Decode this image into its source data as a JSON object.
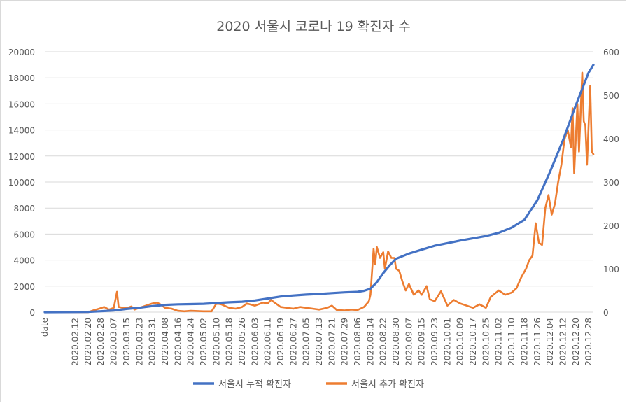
{
  "chart_data": {
    "type": "line",
    "title": "2020 서울시 코로나 19 확진자 수",
    "x_first_label": "date",
    "x_ticks": [
      "2020.02.12",
      "2020.02.20",
      "2020.02.28",
      "2020.03.07",
      "2020.03.15",
      "2020.03.23",
      "2020.03.31",
      "2020.04.08",
      "2020.04.16",
      "2020.04.24",
      "2020.05.02",
      "2020.05.10",
      "2020.05.18",
      "2020.05.26",
      "2020.06.03",
      "2020.06.11",
      "2020.06.19",
      "2020.06.27",
      "2020.07.05",
      "2020.07.13",
      "2020.07.21",
      "2020.07.29",
      "2020.08.06",
      "2020.08.14",
      "2020.08.22",
      "2020.08.30",
      "2020.09.07",
      "2020.09.15",
      "2020.09.23",
      "2020.10.01",
      "2020.10.09",
      "2020.10.17",
      "2020.10.25",
      "2020.11.02",
      "2020.11.10",
      "2020.11.18",
      "2020.11.26",
      "2020.12.04",
      "2020.12.12",
      "2020.12.20",
      "2020.12.28"
    ],
    "y_left": {
      "min": 0,
      "max": 20000,
      "ticks": [
        "0",
        "2000",
        "4000",
        "6000",
        "8000",
        "10000",
        "12000",
        "14000",
        "16000",
        "18000",
        "20000"
      ]
    },
    "y_right": {
      "min": 0,
      "max": 600,
      "ticks": [
        "0",
        "100",
        "200",
        "300",
        "400",
        "500",
        "600"
      ]
    },
    "grid": true,
    "legend_position": "bottom",
    "series": [
      {
        "name": "서울시 누적 확진자",
        "axis": "left",
        "color": "#4472C4",
        "points": [
          [
            "2020.01.24",
            0
          ],
          [
            "2020.02.12",
            10
          ],
          [
            "2020.02.20",
            20
          ],
          [
            "2020.02.28",
            70
          ],
          [
            "2020.03.07",
            130
          ],
          [
            "2020.03.15",
            250
          ],
          [
            "2020.03.23",
            340
          ],
          [
            "2020.03.31",
            470
          ],
          [
            "2020.04.08",
            560
          ],
          [
            "2020.04.16",
            600
          ],
          [
            "2020.04.24",
            620
          ],
          [
            "2020.05.02",
            640
          ],
          [
            "2020.05.10",
            700
          ],
          [
            "2020.05.18",
            760
          ],
          [
            "2020.05.26",
            800
          ],
          [
            "2020.06.03",
            900
          ],
          [
            "2020.06.11",
            1050
          ],
          [
            "2020.06.19",
            1200
          ],
          [
            "2020.06.27",
            1280
          ],
          [
            "2020.07.05",
            1350
          ],
          [
            "2020.07.13",
            1400
          ],
          [
            "2020.07.21",
            1460
          ],
          [
            "2020.07.29",
            1520
          ],
          [
            "2020.08.06",
            1560
          ],
          [
            "2020.08.10",
            1640
          ],
          [
            "2020.08.14",
            1800
          ],
          [
            "2020.08.18",
            2300
          ],
          [
            "2020.08.22",
            3000
          ],
          [
            "2020.08.26",
            3600
          ],
          [
            "2020.08.30",
            4100
          ],
          [
            "2020.09.07",
            4500
          ],
          [
            "2020.09.15",
            4800
          ],
          [
            "2020.09.23",
            5100
          ],
          [
            "2020.10.01",
            5300
          ],
          [
            "2020.10.09",
            5500
          ],
          [
            "2020.10.17",
            5680
          ],
          [
            "2020.10.25",
            5850
          ],
          [
            "2020.11.02",
            6100
          ],
          [
            "2020.11.10",
            6500
          ],
          [
            "2020.11.18",
            7100
          ],
          [
            "2020.11.26",
            8600
          ],
          [
            "2020.12.04",
            10800
          ],
          [
            "2020.12.12",
            13200
          ],
          [
            "2020.12.20",
            15900
          ],
          [
            "2020.12.28",
            18400
          ],
          [
            "2020.12.31",
            19000
          ]
        ]
      },
      {
        "name": "서울시 추가 확진자",
        "axis": "right",
        "color": "#ED7D31",
        "points": [
          [
            "2020.01.24",
            0
          ],
          [
            "2020.02.12",
            0
          ],
          [
            "2020.02.20",
            0
          ],
          [
            "2020.02.24",
            5
          ],
          [
            "2020.02.27",
            8
          ],
          [
            "2020.03.01",
            12
          ],
          [
            "2020.03.04",
            6
          ],
          [
            "2020.03.07",
            10
          ],
          [
            "2020.03.09",
            47
          ],
          [
            "2020.03.10",
            12
          ],
          [
            "2020.03.15",
            9
          ],
          [
            "2020.03.18",
            13
          ],
          [
            "2020.03.20",
            6
          ],
          [
            "2020.03.23",
            10
          ],
          [
            "2020.03.27",
            15
          ],
          [
            "2020.03.31",
            20
          ],
          [
            "2020.04.03",
            22
          ],
          [
            "2020.04.05",
            18
          ],
          [
            "2020.04.08",
            10
          ],
          [
            "2020.04.12",
            8
          ],
          [
            "2020.04.16",
            3
          ],
          [
            "2020.04.20",
            2
          ],
          [
            "2020.04.24",
            3
          ],
          [
            "2020.05.02",
            2
          ],
          [
            "2020.05.07",
            2
          ],
          [
            "2020.05.10",
            20
          ],
          [
            "2020.05.13",
            18
          ],
          [
            "2020.05.18",
            10
          ],
          [
            "2020.05.22",
            8
          ],
          [
            "2020.05.26",
            12
          ],
          [
            "2020.05.29",
            20
          ],
          [
            "2020.06.03",
            15
          ],
          [
            "2020.06.08",
            22
          ],
          [
            "2020.06.11",
            20
          ],
          [
            "2020.06.13",
            28
          ],
          [
            "2020.06.16",
            20
          ],
          [
            "2020.06.19",
            12
          ],
          [
            "2020.06.23",
            10
          ],
          [
            "2020.06.27",
            8
          ],
          [
            "2020.07.01",
            12
          ],
          [
            "2020.07.05",
            10
          ],
          [
            "2020.07.09",
            8
          ],
          [
            "2020.07.13",
            6
          ],
          [
            "2020.07.18",
            10
          ],
          [
            "2020.07.21",
            15
          ],
          [
            "2020.07.24",
            5
          ],
          [
            "2020.07.29",
            4
          ],
          [
            "2020.08.02",
            6
          ],
          [
            "2020.08.06",
            5
          ],
          [
            "2020.08.10",
            12
          ],
          [
            "2020.08.13",
            25
          ],
          [
            "2020.08.14",
            40
          ],
          [
            "2020.08.16",
            146
          ],
          [
            "2020.08.17",
            110
          ],
          [
            "2020.08.18",
            150
          ],
          [
            "2020.08.20",
            125
          ],
          [
            "2020.08.22",
            138
          ],
          [
            "2020.08.23",
            100
          ],
          [
            "2020.08.25",
            140
          ],
          [
            "2020.08.27",
            125
          ],
          [
            "2020.08.29",
            125
          ],
          [
            "2020.08.30",
            100
          ],
          [
            "2020.09.01",
            95
          ],
          [
            "2020.09.03",
            70
          ],
          [
            "2020.09.05",
            50
          ],
          [
            "2020.09.07",
            65
          ],
          [
            "2020.09.10",
            40
          ],
          [
            "2020.09.13",
            50
          ],
          [
            "2020.09.15",
            40
          ],
          [
            "2020.09.18",
            60
          ],
          [
            "2020.09.20",
            30
          ],
          [
            "2020.09.23",
            25
          ],
          [
            "2020.09.27",
            48
          ],
          [
            "2020.10.01",
            15
          ],
          [
            "2020.10.05",
            28
          ],
          [
            "2020.10.09",
            20
          ],
          [
            "2020.10.13",
            15
          ],
          [
            "2020.10.17",
            10
          ],
          [
            "2020.10.21",
            18
          ],
          [
            "2020.10.25",
            10
          ],
          [
            "2020.10.28",
            35
          ],
          [
            "2020.11.02",
            50
          ],
          [
            "2020.11.06",
            40
          ],
          [
            "2020.11.10",
            45
          ],
          [
            "2020.11.13",
            55
          ],
          [
            "2020.11.16",
            80
          ],
          [
            "2020.11.19",
            100
          ],
          [
            "2020.11.21",
            120
          ],
          [
            "2020.11.23",
            130
          ],
          [
            "2020.11.25",
            205
          ],
          [
            "2020.11.27",
            160
          ],
          [
            "2020.11.29",
            155
          ],
          [
            "2020.12.01",
            240
          ],
          [
            "2020.12.03",
            270
          ],
          [
            "2020.12.05",
            225
          ],
          [
            "2020.12.07",
            250
          ],
          [
            "2020.12.09",
            300
          ],
          [
            "2020.12.11",
            340
          ],
          [
            "2020.12.13",
            399
          ],
          [
            "2020.12.15",
            420
          ],
          [
            "2020.12.17",
            380
          ],
          [
            "2020.12.18",
            470
          ],
          [
            "2020.12.19",
            320
          ],
          [
            "2020.12.21",
            480
          ],
          [
            "2020.12.22",
            370
          ],
          [
            "2020.12.24",
            552
          ],
          [
            "2020.12.25",
            440
          ],
          [
            "2020.12.26",
            430
          ],
          [
            "2020.12.27",
            340
          ],
          [
            "2020.12.29",
            522
          ],
          [
            "2020.12.30",
            370
          ],
          [
            "2020.12.31",
            364
          ]
        ]
      }
    ]
  }
}
